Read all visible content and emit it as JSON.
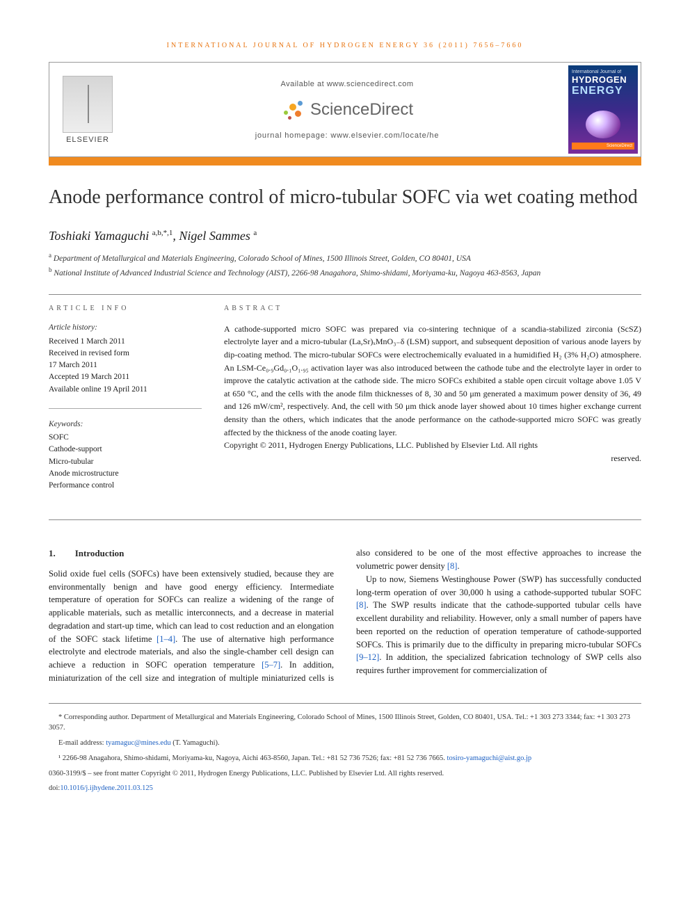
{
  "running_head": "INTERNATIONAL JOURNAL OF HYDROGEN ENERGY 36 (2011) 7656–7660",
  "header": {
    "elsevier": "ELSEVIER",
    "available": "Available at www.sciencedirect.com",
    "sd": "ScienceDirect",
    "homepage": "journal homepage: www.elsevier.com/locate/he",
    "cover_line1": "International Journal of",
    "cover_line2": "HYDROGEN",
    "cover_line3": "ENERGY"
  },
  "title": "Anode performance control of micro-tubular SOFC via wet coating method",
  "authors_html": "Toshiaki Yamaguchi <sup>a,b,*,1</sup>, Nigel Sammes <sup>a</sup>",
  "affiliations": [
    "<sup>a</sup> Department of Metallurgical and Materials Engineering, Colorado School of Mines, 1500 Illinois Street, Golden, CO 80401, USA",
    "<sup>b</sup> National Institute of Advanced Industrial Science and Technology (AIST), 2266-98 Anagahora, Shimo-shidami, Moriyama-ku, Nagoya 463-8563, Japan"
  ],
  "article_info": {
    "head": "ARTICLE INFO",
    "history_label": "Article history:",
    "history": [
      "Received 1 March 2011",
      "Received in revised form",
      "17 March 2011",
      "Accepted 19 March 2011",
      "Available online 19 April 2011"
    ],
    "keywords_label": "Keywords:",
    "keywords": [
      "SOFC",
      "Cathode-support",
      "Micro-tubular",
      "Anode microstructure",
      "Performance control"
    ]
  },
  "abstract": {
    "head": "ABSTRACT",
    "body": "A cathode-supported micro SOFC was prepared via co-sintering technique of a scandia-stabilized zirconia (ScSZ) electrolyte layer and a micro-tubular (La,Sr)ₓMnO₃₋δ (LSM) support, and subsequent deposition of various anode layers by dip-coating method. The micro-tubular SOFCs were electrochemically evaluated in a humidified H₂ (3% H₂O) atmosphere. An LSM-Ce₀.₉Gd₀.₁O₁.₉₅ activation layer was also introduced between the cathode tube and the electrolyte layer in order to improve the catalytic activation at the cathode side. The micro SOFCs exhibited a stable open circuit voltage above 1.05 V at 650 °C, and the cells with the anode film thicknesses of 8, 30 and 50 μm generated a maximum power density of 36, 49 and 126 mW/cm², respectively. And, the cell with 50 μm thick anode layer showed about 10 times higher exchange current density than the others, which indicates that the anode performance on the cathode-supported micro SOFC was greatly affected by the thickness of the anode coating layer.",
    "copyright": "Copyright © 2011, Hydrogen Energy Publications, LLC. Published by Elsevier Ltd. All rights",
    "reserved": "reserved."
  },
  "section1": {
    "num": "1.",
    "title": "Introduction",
    "p1": "Solid oxide fuel cells (SOFCs) have been extensively studied, because they are environmentally benign and have good energy efficiency. Intermediate temperature of operation for SOFCs can realize a widening of the range of applicable materials, such as metallic interconnects, and a decrease in material degradation and start-up time, which can lead to cost reduction and an elongation of the SOFC stack lifetime <span class=\"cite\">[1–4]</span>. The use of alternative high performance electrolyte and electrode materials, and also the single-chamber cell design can achieve a reduction in SOFC operation temperature <span class=\"cite\">[5–7]</span>. In addition, miniaturization of the cell size and integration of multiple miniaturized cells is also considered to be one of the most effective approaches to increase the volumetric power density <span class=\"cite\">[8]</span>.",
    "p2": "Up to now, Siemens Westinghouse Power (SWP) has successfully conducted long-term operation of over 30,000 h using a cathode-supported tubular SOFC <span class=\"cite\">[8]</span>. The SWP results indicate that the cathode-supported tubular cells have excellent durability and reliability. However, only a small number of papers have been reported on the reduction of operation temperature of cathode-supported SOFCs. This is primarily due to the difficulty in preparing micro-tubular SOFCs <span class=\"cite\">[9–12]</span>. In addition, the specialized fabrication technology of SWP cells also requires further improvement for commercialization of"
  },
  "footnotes": {
    "corr": "* Corresponding author. Department of Metallurgical and Materials Engineering, Colorado School of Mines, 1500 Illinois Street, Golden, CO 80401, USA. Tel.: +1 303 273 3344; fax: +1 303 273 3057.",
    "email_label": "E-mail address: ",
    "email": "tyamaguc@mines.edu",
    "email_tail": " (T. Yamaguchi).",
    "note1": "¹ 2266-98 Anagahora, Shimo-shidami, Moriyama-ku, Nagoya, Aichi 463-8560, Japan. Tel.: +81 52 736 7526; fax: +81 52 736 7665. ",
    "note1_email": "tosiro-yamaguchi@aist.go.jp",
    "issn": "0360-3199/$ – see front matter Copyright © 2011, Hydrogen Energy Publications, LLC. Published by Elsevier Ltd. All rights reserved.",
    "doi_label": "doi:",
    "doi": "10.1016/j.ijhydene.2011.03.125"
  },
  "colors": {
    "orange": "#f08a1f",
    "link": "#1b5fc2",
    "head_orange": "#e8730e"
  }
}
